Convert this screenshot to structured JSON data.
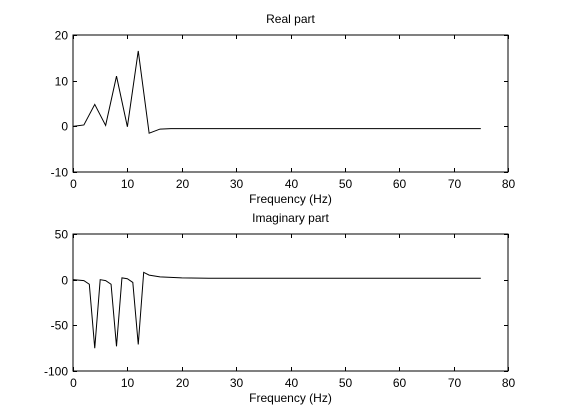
{
  "chart_data": [
    {
      "type": "line",
      "title": "Real part",
      "xlabel": "Frequency (Hz)",
      "ylabel": "",
      "xlim": [
        0,
        80
      ],
      "ylim": [
        -10,
        20
      ],
      "xticks": [
        0,
        10,
        20,
        30,
        40,
        50,
        60,
        70,
        80
      ],
      "yticks": [
        -10,
        0,
        10,
        20
      ],
      "xtick_labels": [
        "0",
        "10",
        "20",
        "30",
        "40",
        "50",
        "60",
        "70",
        "80"
      ],
      "ytick_labels": [
        "-10",
        "0",
        "10",
        "20"
      ],
      "grid": false,
      "series": [
        {
          "color": "#000000",
          "x": [
            0,
            2,
            4,
            6,
            8,
            10,
            12,
            14,
            16,
            18,
            20,
            25,
            30,
            35,
            40,
            45,
            50,
            55,
            60,
            65,
            70,
            75
          ],
          "y": [
            0,
            0.3,
            4.8,
            0.2,
            11.0,
            -0.1,
            16.5,
            -1.5,
            -0.6,
            -0.5,
            -0.5,
            -0.5,
            -0.5,
            -0.5,
            -0.5,
            -0.5,
            -0.5,
            -0.5,
            -0.5,
            -0.5,
            -0.5,
            -0.5
          ]
        }
      ]
    },
    {
      "type": "line",
      "title": "Imaginary part",
      "xlabel": "Frequency (Hz)",
      "ylabel": "",
      "xlim": [
        0,
        80
      ],
      "ylim": [
        -100,
        50
      ],
      "xticks": [
        0,
        10,
        20,
        30,
        40,
        50,
        60,
        70,
        80
      ],
      "yticks": [
        -100,
        -50,
        0,
        50
      ],
      "xtick_labels": [
        "0",
        "10",
        "20",
        "30",
        "40",
        "50",
        "60",
        "70",
        "80"
      ],
      "ytick_labels": [
        "-100",
        "-50",
        "0",
        "50"
      ],
      "grid": false,
      "series": [
        {
          "color": "#000000",
          "x": [
            0,
            2,
            3,
            4,
            5,
            6,
            7,
            8,
            9,
            10,
            11,
            12,
            13,
            14,
            16,
            18,
            20,
            25,
            30,
            35,
            40,
            45,
            50,
            55,
            60,
            65,
            70,
            75
          ],
          "y": [
            0,
            -1,
            -5,
            -75,
            0,
            -1,
            -5,
            -73,
            2,
            1,
            -3,
            -71,
            8,
            5,
            3,
            2.5,
            2,
            1.5,
            1.5,
            1.5,
            1.5,
            1.5,
            1.5,
            1.5,
            1.5,
            1.5,
            1.5,
            1.5
          ]
        }
      ]
    }
  ]
}
